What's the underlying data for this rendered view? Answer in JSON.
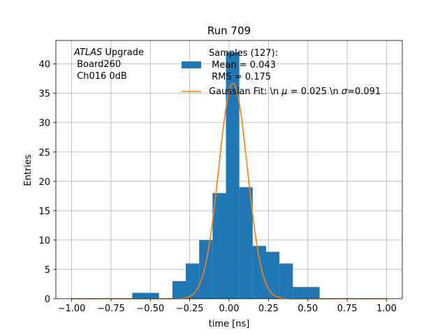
{
  "chart_data": {
    "type": "bar",
    "title": "Run 709",
    "xlabel": "time [ns]",
    "ylabel": "Entries",
    "xlim": [
      -1.1,
      1.1
    ],
    "ylim": [
      0,
      44
    ],
    "grid": true,
    "x_ticks": [
      -1.0,
      -0.75,
      -0.5,
      -0.25,
      0.0,
      0.25,
      0.5,
      0.75,
      1.0
    ],
    "x_tick_labels": [
      "−1.00",
      "−0.75",
      "−0.50",
      "−0.25",
      "0.00",
      "0.25",
      "0.50",
      "0.75",
      "1.00"
    ],
    "y_ticks": [
      0,
      5,
      10,
      15,
      20,
      25,
      30,
      35,
      40
    ],
    "y_tick_labels": [
      "0",
      "5",
      "10",
      "15",
      "20",
      "25",
      "30",
      "35",
      "40"
    ],
    "histogram": {
      "name": "Samples (127):\n Mean = 0.043\n RMS = 0.175",
      "color": "#1f77b4",
      "bins": [
        {
          "x0": -0.615,
          "x1": -0.53,
          "count": 1
        },
        {
          "x0": -0.53,
          "x1": -0.445,
          "count": 1
        },
        {
          "x0": -0.36,
          "x1": -0.275,
          "count": 3
        },
        {
          "x0": -0.275,
          "x1": -0.19,
          "count": 6
        },
        {
          "x0": -0.19,
          "x1": -0.105,
          "count": 10
        },
        {
          "x0": -0.105,
          "x1": -0.02,
          "count": 18
        },
        {
          "x0": -0.02,
          "x1": 0.065,
          "count": 42
        },
        {
          "x0": 0.065,
          "x1": 0.15,
          "count": 19
        },
        {
          "x0": 0.15,
          "x1": 0.235,
          "count": 9
        },
        {
          "x0": 0.235,
          "x1": 0.32,
          "count": 8
        },
        {
          "x0": 0.32,
          "x1": 0.405,
          "count": 6
        },
        {
          "x0": 0.405,
          "x1": 0.49,
          "count": 2
        },
        {
          "x0": 0.49,
          "x1": 0.575,
          "count": 2
        }
      ]
    },
    "fit": {
      "name": "Gaussian Fit: \\n $\\mu$ = 0.025 \\n $\\sigma$=0.091",
      "name_prefix": "Gaussian Fit: \\n ",
      "name_mu_symbol": "μ",
      "name_middle": " = 0.025 \\n ",
      "name_sigma_symbol": "σ",
      "name_suffix": "=0.091",
      "color": "#ff7f0e",
      "mu": 0.025,
      "sigma": 0.091,
      "amplitude": 36.7
    },
    "legend_placement": "top-center",
    "annotation": {
      "line1_italic": "ATLAS",
      "line1_rest": " Upgrade",
      "line2": " Board260",
      "line3": " Ch016 0dB"
    },
    "legend_hist_lines": [
      "Samples (127):",
      " Mean = 0.043",
      " RMS = 0.175"
    ]
  }
}
